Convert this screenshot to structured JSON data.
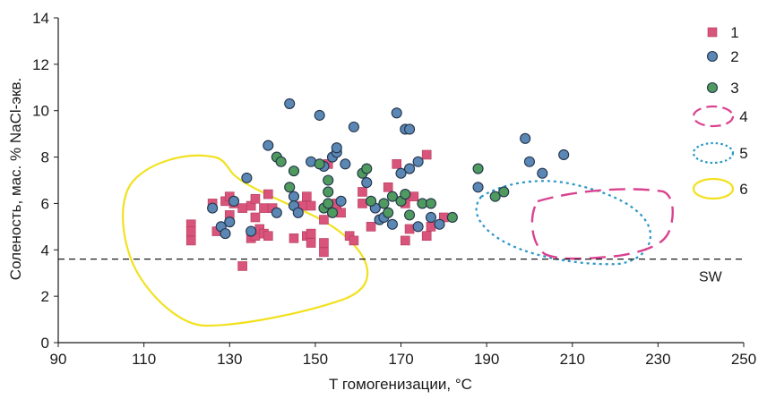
{
  "chart_data": {
    "type": "scatter",
    "xlabel": "T гомогенизации, °C",
    "ylabel": "Соленость, мас. % NaCl-экв.",
    "xlim": [
      90,
      250
    ],
    "ylim": [
      0,
      14
    ],
    "x_ticks": [
      "90",
      "110",
      "130",
      "150",
      "170",
      "190",
      "210",
      "230",
      "250"
    ],
    "y_ticks": [
      "0",
      "2",
      "4",
      "6",
      "8",
      "10",
      "12",
      "14"
    ],
    "grid": false,
    "legend_position": "right",
    "reference_line": {
      "label": "SW",
      "y": 3.6,
      "style": "dashed"
    },
    "series": [
      {
        "name": "1",
        "marker": "square",
        "color": "#d9547a",
        "points": [
          [
            121,
            5.1
          ],
          [
            121,
            4.8
          ],
          [
            121,
            4.4
          ],
          [
            126,
            6.0
          ],
          [
            127,
            4.8
          ],
          [
            129,
            6.1
          ],
          [
            130,
            6.3
          ],
          [
            130,
            5.5
          ],
          [
            131,
            6.0
          ],
          [
            133,
            3.3
          ],
          [
            133,
            5.8
          ],
          [
            135,
            4.5
          ],
          [
            135,
            5.9
          ],
          [
            136,
            5.4
          ],
          [
            136,
            4.6
          ],
          [
            136,
            6.2
          ],
          [
            137,
            4.9
          ],
          [
            138,
            4.7
          ],
          [
            138,
            5.8
          ],
          [
            139,
            6.4
          ],
          [
            139,
            4.6
          ],
          [
            140,
            5.8
          ],
          [
            145,
            4.5
          ],
          [
            146,
            5.7
          ],
          [
            147,
            5.9
          ],
          [
            148,
            4.6
          ],
          [
            148,
            6.3
          ],
          [
            149,
            5.9
          ],
          [
            149,
            4.3
          ],
          [
            149,
            4.7
          ],
          [
            152,
            4.3
          ],
          [
            152,
            3.9
          ],
          [
            152,
            5.3
          ],
          [
            153,
            7.7
          ],
          [
            155,
            6.0
          ],
          [
            156,
            5.6
          ],
          [
            158,
            4.6
          ],
          [
            159,
            4.4
          ],
          [
            161,
            6.5
          ],
          [
            161,
            6.0
          ],
          [
            163,
            5.0
          ],
          [
            167,
            6.7
          ],
          [
            169,
            7.7
          ],
          [
            171,
            6.0
          ],
          [
            171,
            4.4
          ],
          [
            172,
            4.9
          ],
          [
            173,
            6.3
          ],
          [
            176,
            8.1
          ],
          [
            176,
            4.6
          ],
          [
            177,
            5.0
          ],
          [
            180,
            5.4
          ]
        ]
      },
      {
        "name": "2",
        "marker": "circle",
        "color": "#5b87b5",
        "points": [
          [
            126,
            5.8
          ],
          [
            128,
            5.0
          ],
          [
            129,
            4.7
          ],
          [
            130,
            5.2
          ],
          [
            131,
            6.1
          ],
          [
            134,
            7.1
          ],
          [
            135,
            4.8
          ],
          [
            139,
            8.5
          ],
          [
            141,
            5.6
          ],
          [
            144,
            10.3
          ],
          [
            145,
            6.3
          ],
          [
            145,
            5.9
          ],
          [
            146,
            5.6
          ],
          [
            149,
            7.8
          ],
          [
            151,
            9.8
          ],
          [
            152,
            7.6
          ],
          [
            154,
            8.0
          ],
          [
            155,
            8.2
          ],
          [
            155,
            8.4
          ],
          [
            156,
            6.1
          ],
          [
            157,
            7.7
          ],
          [
            159,
            9.3
          ],
          [
            162,
            6.9
          ],
          [
            164,
            5.8
          ],
          [
            165,
            5.3
          ],
          [
            166,
            5.4
          ],
          [
            168,
            5.1
          ],
          [
            169,
            9.9
          ],
          [
            170,
            7.3
          ],
          [
            171,
            9.2
          ],
          [
            172,
            7.5
          ],
          [
            172,
            9.2
          ],
          [
            174,
            5.0
          ],
          [
            174,
            7.8
          ],
          [
            177,
            5.4
          ],
          [
            179,
            5.1
          ],
          [
            188,
            6.7
          ],
          [
            199,
            8.8
          ],
          [
            200,
            7.8
          ],
          [
            203,
            7.3
          ],
          [
            208,
            8.1
          ]
        ]
      },
      {
        "name": "3",
        "marker": "circle",
        "color": "#4f9a5e",
        "points": [
          [
            141,
            8.0
          ],
          [
            142,
            7.8
          ],
          [
            144,
            6.7
          ],
          [
            145,
            7.4
          ],
          [
            151,
            7.7
          ],
          [
            152,
            5.8
          ],
          [
            153,
            7.0
          ],
          [
            153,
            6.5
          ],
          [
            153,
            6.0
          ],
          [
            154,
            5.6
          ],
          [
            161,
            7.3
          ],
          [
            162,
            7.5
          ],
          [
            163,
            6.1
          ],
          [
            166,
            6.0
          ],
          [
            167,
            5.6
          ],
          [
            168,
            6.3
          ],
          [
            170,
            6.1
          ],
          [
            171,
            6.4
          ],
          [
            172,
            5.5
          ],
          [
            175,
            6.0
          ],
          [
            177,
            6.0
          ],
          [
            182,
            5.4
          ],
          [
            188,
            7.5
          ],
          [
            192,
            6.3
          ],
          [
            194,
            6.5
          ]
        ]
      }
    ],
    "regions": [
      {
        "name": "4",
        "style": "long-dash",
        "color": "#d9428f"
      },
      {
        "name": "5",
        "style": "dotted",
        "color": "#2a96c8"
      },
      {
        "name": "6",
        "style": "solid",
        "color": "#f2e11f"
      }
    ]
  }
}
